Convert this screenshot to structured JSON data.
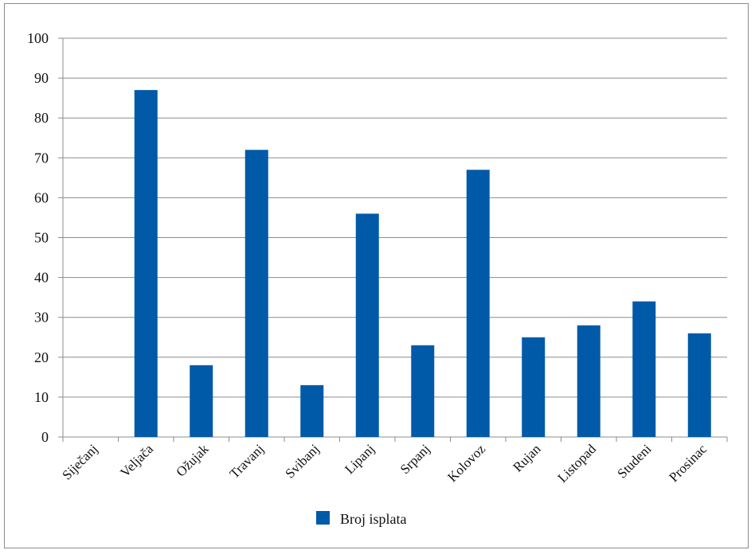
{
  "chart_data": {
    "type": "bar",
    "categories": [
      "Siječanj",
      "Veljača",
      "Ožujak",
      "Travanj",
      "Svibanj",
      "Lipanj",
      "Srpanj",
      "Kolovoz",
      "Rujan",
      "Listopad",
      "Studeni",
      "Prosinac"
    ],
    "series": [
      {
        "name": "Broj isplata",
        "values": [
          0,
          87,
          18,
          72,
          13,
          56,
          23,
          67,
          25,
          28,
          34,
          26
        ],
        "color": "#005aa8"
      }
    ],
    "ylim": [
      0,
      100
    ],
    "yticks": [
      "0",
      "10",
      "20",
      "30",
      "40",
      "50",
      "60",
      "70",
      "80",
      "90",
      "100"
    ],
    "grid": true,
    "legend_position": "bottom",
    "gridline_color": "#8c8c8c",
    "axis_color": "#8c8c8c"
  }
}
